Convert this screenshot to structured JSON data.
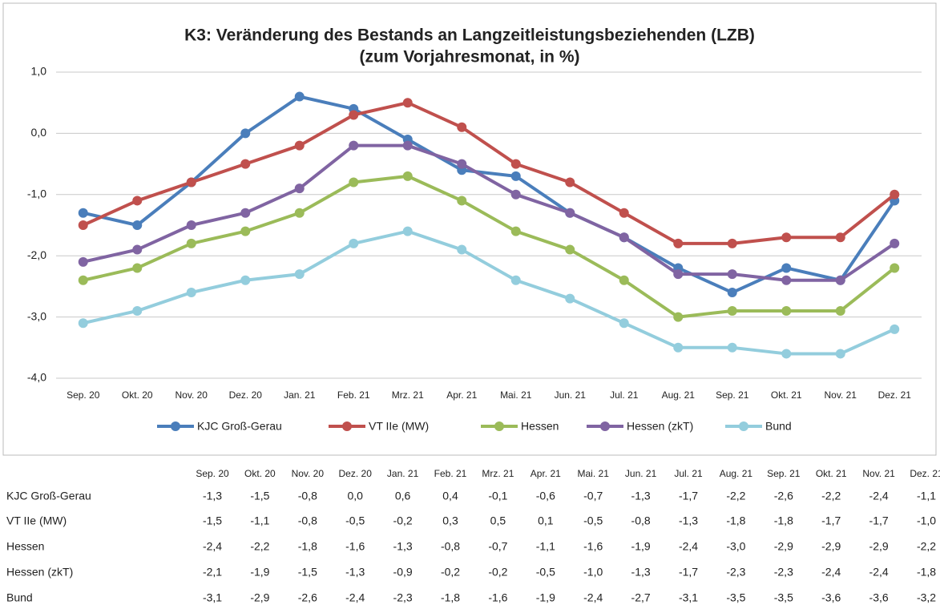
{
  "chart_data": {
    "type": "line",
    "title": "K3: Veränderung des Bestands an Langzeitleistungsbeziehenden (LZB)",
    "subtitle": "(zum Vorjahresmonat, in %)",
    "categories": [
      "Sep. 20",
      "Okt. 20",
      "Nov. 20",
      "Dez. 20",
      "Jan. 21",
      "Feb. 21",
      "Mrz. 21",
      "Apr. 21",
      "Mai. 21",
      "Jun. 21",
      "Jul. 21",
      "Aug. 21",
      "Sep. 21",
      "Okt. 21",
      "Nov. 21",
      "Dez. 21"
    ],
    "series": [
      {
        "name": "KJC Groß-Gerau",
        "color": "#4a7ebb",
        "values": [
          -1.3,
          -1.5,
          -0.8,
          0.0,
          0.6,
          0.4,
          -0.1,
          -0.6,
          -0.7,
          -1.3,
          -1.7,
          -2.2,
          -2.6,
          -2.2,
          -2.4,
          -1.1
        ],
        "value_labels": [
          "-1,3",
          "-1,5",
          "-0,8",
          "0,0",
          "0,6",
          "0,4",
          "-0,1",
          "-0,6",
          "-0,7",
          "-1,3",
          "-1,7",
          "-2,2",
          "-2,6",
          "-2,2",
          "-2,4",
          "-1,1"
        ]
      },
      {
        "name": "VT IIe (MW)",
        "color": "#c0504d",
        "values": [
          -1.5,
          -1.1,
          -0.8,
          -0.5,
          -0.2,
          0.3,
          0.5,
          0.1,
          -0.5,
          -0.8,
          -1.3,
          -1.8,
          -1.8,
          -1.7,
          -1.7,
          -1.0
        ],
        "value_labels": [
          "-1,5",
          "-1,1",
          "-0,8",
          "-0,5",
          "-0,2",
          "0,3",
          "0,5",
          "0,1",
          "-0,5",
          "-0,8",
          "-1,3",
          "-1,8",
          "-1,8",
          "-1,7",
          "-1,7",
          "-1,0"
        ]
      },
      {
        "name": "Hessen",
        "color": "#9bbb59",
        "values": [
          -2.4,
          -2.2,
          -1.8,
          -1.6,
          -1.3,
          -0.8,
          -0.7,
          -1.1,
          -1.6,
          -1.9,
          -2.4,
          -3.0,
          -2.9,
          -2.9,
          -2.9,
          -2.2
        ],
        "value_labels": [
          "-2,4",
          "-2,2",
          "-1,8",
          "-1,6",
          "-1,3",
          "-0,8",
          "-0,7",
          "-1,1",
          "-1,6",
          "-1,9",
          "-2,4",
          "-3,0",
          "-2,9",
          "-2,9",
          "-2,9",
          "-2,2"
        ]
      },
      {
        "name": "Hessen (zkT)",
        "color": "#8064a2",
        "values": [
          -2.1,
          -1.9,
          -1.5,
          -1.3,
          -0.9,
          -0.2,
          -0.2,
          -0.5,
          -1.0,
          -1.3,
          -1.7,
          -2.3,
          -2.3,
          -2.4,
          -2.4,
          -1.8
        ],
        "value_labels": [
          "-2,1",
          "-1,9",
          "-1,5",
          "-1,3",
          "-0,9",
          "-0,2",
          "-0,2",
          "-0,5",
          "-1,0",
          "-1,3",
          "-1,7",
          "-2,3",
          "-2,3",
          "-2,4",
          "-2,4",
          "-1,8"
        ]
      },
      {
        "name": "Bund",
        "color": "#93cddd",
        "values": [
          -3.1,
          -2.9,
          -2.6,
          -2.4,
          -2.3,
          -1.8,
          -1.6,
          -1.9,
          -2.4,
          -2.7,
          -3.1,
          -3.5,
          -3.5,
          -3.6,
          -3.6,
          -3.2
        ],
        "value_labels": [
          "-3,1",
          "-2,9",
          "-2,6",
          "-2,4",
          "-2,3",
          "-1,8",
          "-1,6",
          "-1,9",
          "-2,4",
          "-2,7",
          "-3,1",
          "-3,5",
          "-3,5",
          "-3,6",
          "-3,6",
          "-3,2"
        ]
      }
    ],
    "ylim": [
      -4,
      1
    ],
    "yticks": [
      {
        "value": -4,
        "label": "-4,0"
      },
      {
        "value": -3,
        "label": "-3,0"
      },
      {
        "value": -2,
        "label": "-2,0"
      },
      {
        "value": -1,
        "label": "-1,0"
      },
      {
        "value": 0,
        "label": "0,0"
      },
      {
        "value": 1,
        "label": "1,0"
      }
    ],
    "grid": true,
    "legend": "bottom"
  }
}
